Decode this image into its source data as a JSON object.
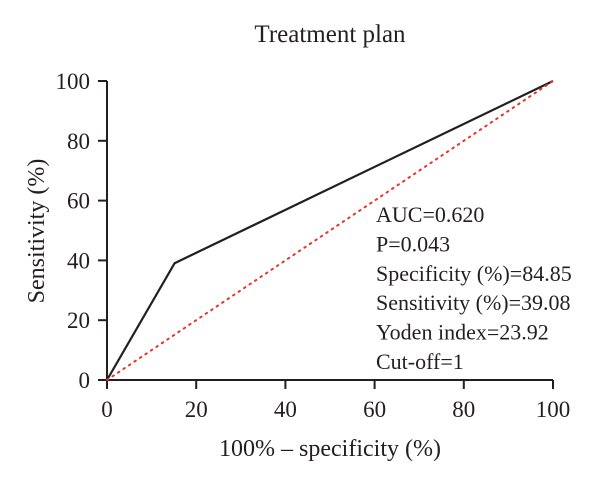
{
  "chart_data": {
    "type": "line",
    "title": "Treatment plan",
    "xlabel": "100% – specificity (%)",
    "ylabel": "Sensitivity (%)",
    "xlim": [
      0,
      100
    ],
    "ylim": [
      0,
      100
    ],
    "x_ticks": [
      0,
      20,
      40,
      60,
      80,
      100
    ],
    "y_ticks": [
      0,
      20,
      40,
      60,
      80,
      100
    ],
    "grid": false,
    "series": [
      {
        "style": "solid",
        "color": "#231f20",
        "x": [
          0,
          15.15,
          100
        ],
        "y": [
          0,
          39.08,
          100
        ]
      },
      {
        "style": "dotted",
        "color": "#e8332a",
        "x": [
          0,
          100
        ],
        "y": [
          0,
          100
        ]
      }
    ],
    "annotations": [
      "AUC=0.620",
      "P=0.043",
      "Specificity (%)=84.85",
      "Sensitivity (%)=39.08",
      "Yoden index=23.92",
      "Cut-off=1"
    ]
  }
}
